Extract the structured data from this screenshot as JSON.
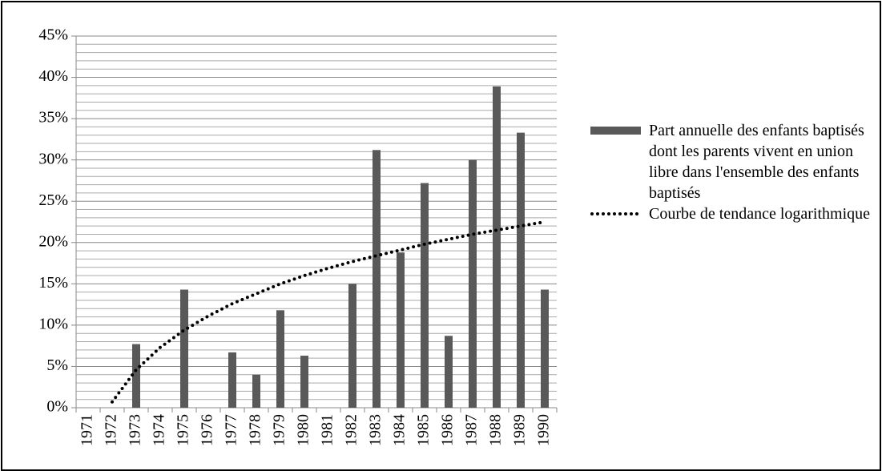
{
  "chart_data": {
    "type": "bar",
    "categories": [
      "1971",
      "1972",
      "1973",
      "1974",
      "1975",
      "1976",
      "1977",
      "1978",
      "1979",
      "1980",
      "1981",
      "1982",
      "1983",
      "1984",
      "1985",
      "1986",
      "1987",
      "1988",
      "1989",
      "1990"
    ],
    "series": [
      {
        "name": "Part annuelle des enfants baptisés dont les parents vivent en union libre dans l'ensemble des enfants baptisés",
        "type": "bar",
        "color": "#595959",
        "values": [
          0,
          0,
          7.7,
          0,
          14.3,
          0,
          6.7,
          4.0,
          11.8,
          6.3,
          0,
          15.0,
          31.2,
          18.8,
          27.2,
          8.7,
          30.0,
          38.9,
          33.3,
          14.3
        ]
      },
      {
        "name": "Courbe de tendance logarithmique",
        "type": "line",
        "style": "dotted",
        "color": "#000000",
        "values": [
          null,
          0.7,
          4.6,
          7.3,
          9.4,
          11.1,
          12.6,
          13.8,
          15.0,
          16.0,
          16.9,
          17.7,
          18.4,
          19.1,
          19.8,
          20.4,
          21.0,
          21.5,
          22.0,
          22.5
        ]
      }
    ],
    "ylim": [
      0,
      45
    ],
    "yticks": [
      {
        "value": 0,
        "label": "0%"
      },
      {
        "value": 5,
        "label": "5%"
      },
      {
        "value": 10,
        "label": "10%"
      },
      {
        "value": 15,
        "label": "15%"
      },
      {
        "value": 20,
        "label": "20%"
      },
      {
        "value": 25,
        "label": "25%"
      },
      {
        "value": 30,
        "label": "30%"
      },
      {
        "value": 35,
        "label": "35%"
      },
      {
        "value": 40,
        "label": "40%"
      },
      {
        "value": 45,
        "label": "45%"
      }
    ],
    "minor_yticks": [
      1,
      2,
      3,
      4,
      6,
      7,
      8,
      9,
      11,
      12,
      13,
      14,
      16,
      17,
      18,
      19,
      21,
      22,
      23,
      24,
      26,
      27,
      28,
      29,
      31,
      32,
      33,
      34,
      36,
      37,
      38,
      39,
      41,
      42,
      43,
      44
    ],
    "grid": true,
    "legend": "right"
  }
}
